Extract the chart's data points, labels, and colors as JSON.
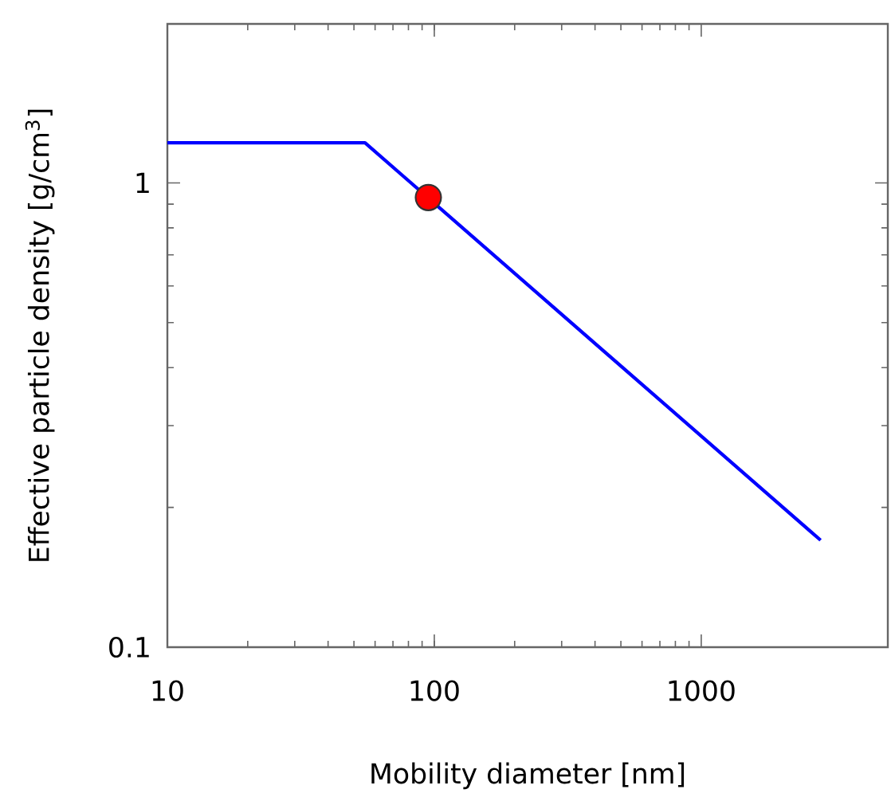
{
  "chart_data": {
    "type": "line",
    "xlabel": "Mobility diameter [nm]",
    "ylabel": "Effective particle density [g/cm$^{3}$]",
    "log": "xy",
    "grid": false,
    "marker": "none",
    "line_style": "solid",
    "xlim": [
      10,
      5000
    ],
    "ylim": [
      0.1,
      2.2
    ],
    "xticks": [
      10,
      100,
      1000
    ],
    "yticks": [
      0.1,
      1
    ],
    "series": [
      {
        "color": "#0000ff",
        "x": [
          10,
          55,
          2800
        ],
        "values": [
          1.22,
          1.22,
          0.17
        ]
      },
      {
        "type": "scatter",
        "color": "#ff0000",
        "marker": "circle",
        "x": [
          95
        ],
        "values": [
          0.93
        ]
      }
    ]
  }
}
